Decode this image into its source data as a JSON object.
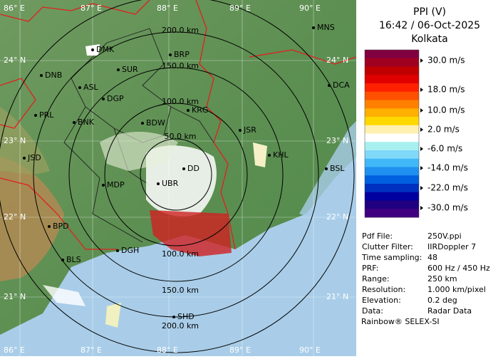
{
  "map": {
    "longitude_top": [
      "86° E",
      "87° E",
      "88° E",
      "89° E",
      "90° E"
    ],
    "longitude_bottom": [
      "86° E",
      "87° E",
      "88° E",
      "89° E",
      "90° E"
    ],
    "latitude_left": [
      "24° N",
      "23° N",
      "22° N",
      "21° N"
    ],
    "latitude_right": [
      "24° N",
      "23° N",
      "22° N",
      "21° N"
    ],
    "range_upper": [
      "200.0 km",
      "150.0 km",
      "100.0 km",
      "50.0 km"
    ],
    "range_lower": [
      "100.0 km",
      "150.0 km",
      "200.0 km"
    ],
    "cities": [
      "DMK",
      "DNB",
      "SUR",
      "BRP",
      "ASL",
      "DGP",
      "KRG",
      "PRL",
      "BNK",
      "BDW",
      "JSR",
      "KHL",
      "JSD",
      "DD",
      "MDP",
      "UBR",
      "BSL",
      "BPD",
      "DGH",
      "BLS",
      "SHD",
      "MNS",
      "DCA"
    ]
  },
  "legend": {
    "title": "PPI (V)",
    "time": "16:42 / 06-Oct-2025",
    "site": "Kolkata",
    "colors": [
      "#800040",
      "#a00020",
      "#c00000",
      "#e00000",
      "#ff2000",
      "#ff5000",
      "#ff8000",
      "#ffb000",
      "#ffd800",
      "#fff0b0",
      "#ffffff",
      "#a8f0f0",
      "#80d8f8",
      "#40b8f8",
      "#2090f0",
      "#0060e0",
      "#0030c0",
      "#0000a0",
      "#200080",
      "#400080"
    ],
    "labels": [
      "30.0 m/s",
      "18.0 m/s",
      "10.0 m/s",
      "2.0 m/s",
      "-6.0 m/s",
      "-14.0 m/s",
      "-22.0 m/s",
      "-30.0 m/s"
    ]
  },
  "info": [
    [
      "Pdf File:",
      "250V.ppi"
    ],
    [
      "Clutter Filter:",
      "IIRDoppler 7"
    ],
    [
      "Time sampling:",
      "48"
    ],
    [
      "PRF:",
      "600 Hz / 450 Hz"
    ],
    [
      "Range:",
      "250 km"
    ],
    [
      "Resolution:",
      "1.000 km/pixel"
    ],
    [
      "Elevation:",
      "0.2 deg"
    ],
    [
      "Data:",
      "Radar Data"
    ]
  ],
  "footer": "Rainbow® SELEX-SI"
}
